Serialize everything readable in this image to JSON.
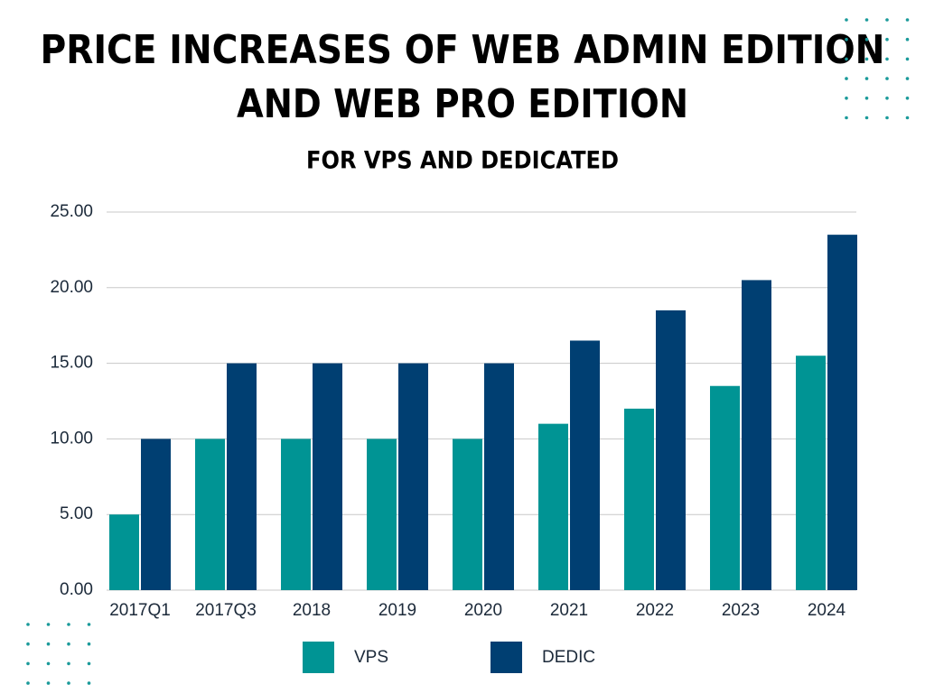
{
  "chart_data": {
    "type": "bar",
    "title": [
      "PRICE INCREASES OF WEB ADMIN EDITION",
      "AND WEB PRO EDITION"
    ],
    "subtitle": "FOR VPS AND DEDICATED",
    "categories": [
      "2017Q1",
      "2017Q3",
      "2018",
      "2019",
      "2020",
      "2021",
      "2022",
      "2023",
      "2024"
    ],
    "series": [
      {
        "name": "VPS",
        "color": "#009494",
        "values": [
          5,
          10,
          10,
          10,
          10,
          11,
          12,
          13.5,
          15.5
        ]
      },
      {
        "name": "DEDIC",
        "color": "#003f72",
        "values": [
          10,
          15,
          15,
          15,
          15,
          16.5,
          18.5,
          20.5,
          23.5
        ]
      }
    ],
    "ylim": [
      0,
      25
    ],
    "yticks": [
      {
        "value": 0,
        "label": "0.00"
      },
      {
        "value": 5,
        "label": "5.00"
      },
      {
        "value": 10,
        "label": "10.00"
      },
      {
        "value": 15,
        "label": "15.00"
      },
      {
        "value": 20,
        "label": "20.00"
      },
      {
        "value": 25,
        "label": "25.00"
      }
    ],
    "grid": true,
    "legend": "bottom"
  }
}
